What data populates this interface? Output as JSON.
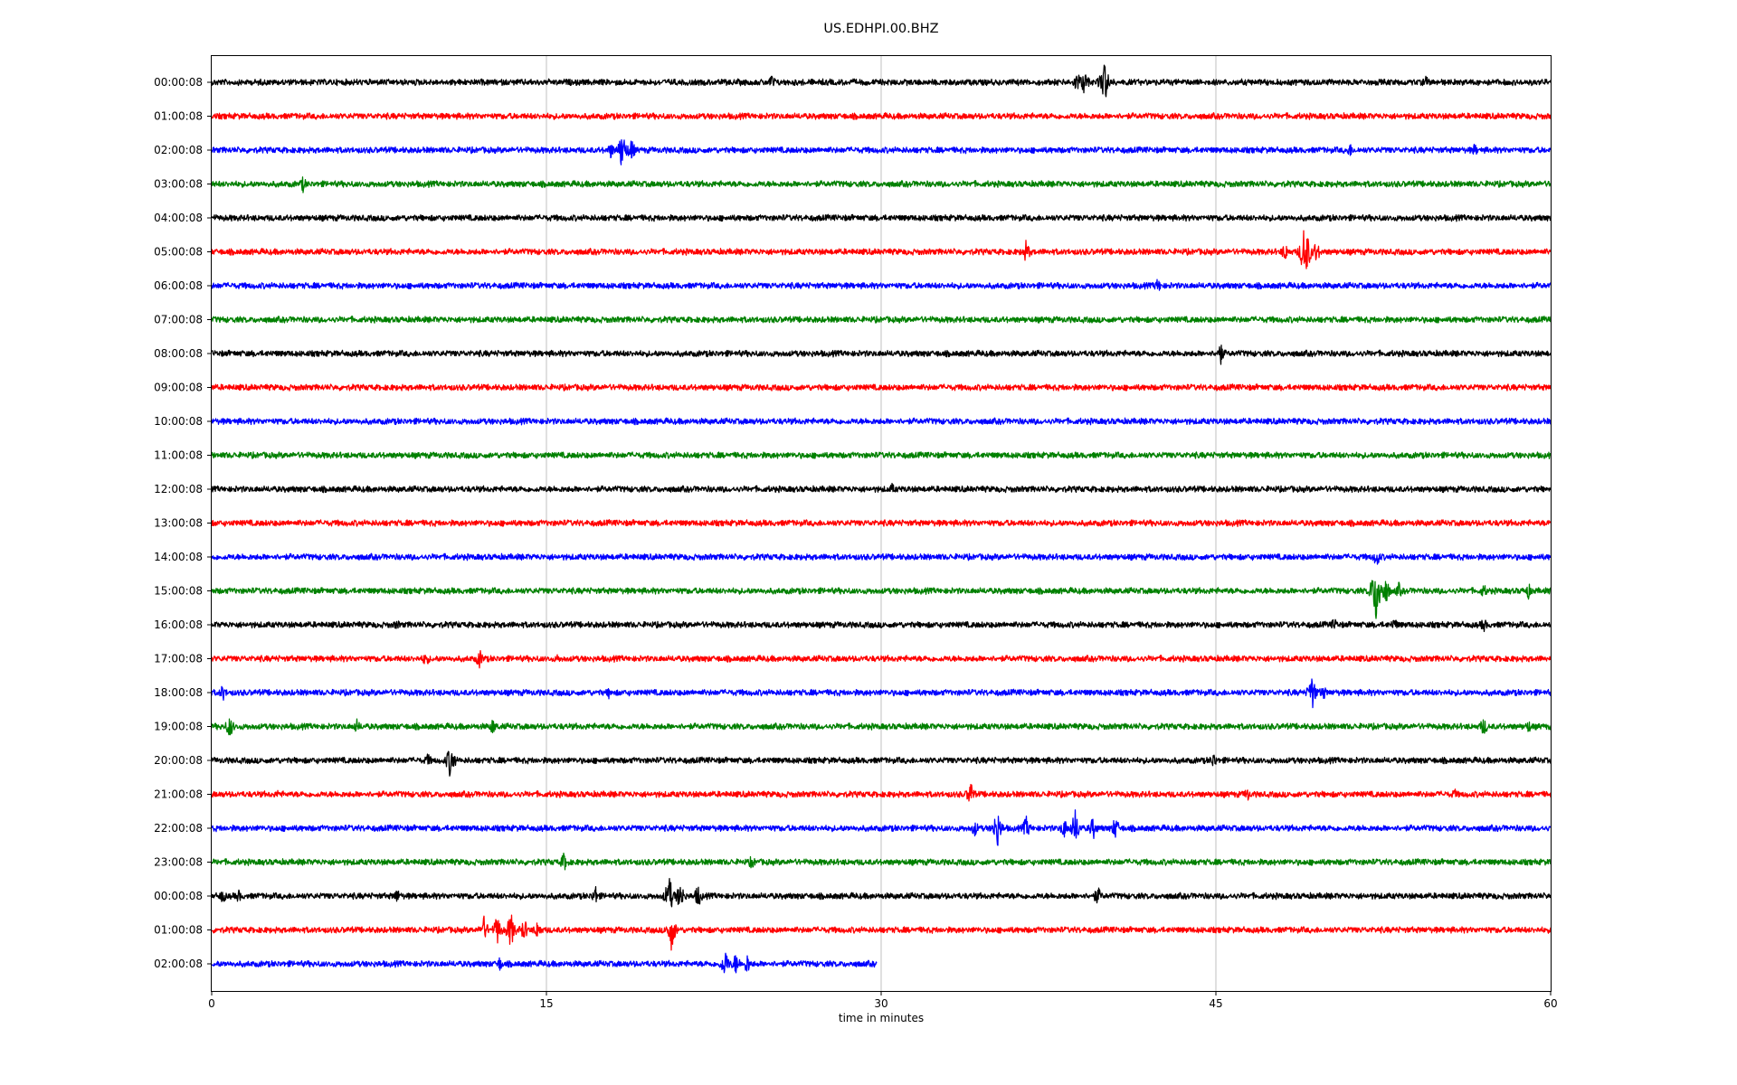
{
  "chart_data": {
    "type": "line",
    "title": "US.EDHPI.00.BHZ",
    "xlabel": "time in minutes",
    "ylabel": "",
    "xlim": [
      0,
      60
    ],
    "x_ticks": [
      0,
      15,
      30,
      45,
      60
    ],
    "x_tick_labels": [
      "0",
      "15",
      "30",
      "45",
      "60"
    ],
    "grid": "vertical lines at major x ticks",
    "line_colors": [
      "#000000",
      "#ff0000",
      "#0000ff",
      "#008000"
    ],
    "series": [
      {
        "label": "00:00:08",
        "color": "#000000",
        "end_minute": 60,
        "events": [
          [
            25.1,
            10
          ],
          [
            38.8,
            14
          ],
          [
            39.1,
            16
          ],
          [
            40.0,
            28
          ],
          [
            54.4,
            9
          ]
        ]
      },
      {
        "label": "01:00:08",
        "color": "#ff0000",
        "end_minute": 60,
        "events": []
      },
      {
        "label": "02:00:08",
        "color": "#0000ff",
        "end_minute": 60,
        "events": [
          [
            17.9,
            10
          ],
          [
            18.4,
            24
          ],
          [
            18.8,
            14
          ],
          [
            51.0,
            9
          ],
          [
            56.6,
            8
          ]
        ]
      },
      {
        "label": "03:00:08",
        "color": "#008000",
        "end_minute": 60,
        "events": [
          [
            4.1,
            10
          ]
        ]
      },
      {
        "label": "04:00:08",
        "color": "#000000",
        "end_minute": 60,
        "events": []
      },
      {
        "label": "05:00:08",
        "color": "#ff0000",
        "end_minute": 60,
        "events": [
          [
            36.5,
            14
          ],
          [
            48.1,
            12
          ],
          [
            49.0,
            40
          ],
          [
            49.5,
            14
          ]
        ]
      },
      {
        "label": "06:00:08",
        "color": "#0000ff",
        "end_minute": 60,
        "events": [
          [
            42.4,
            9
          ]
        ]
      },
      {
        "label": "07:00:08",
        "color": "#008000",
        "end_minute": 60,
        "events": []
      },
      {
        "label": "08:00:08",
        "color": "#000000",
        "end_minute": 60,
        "events": [
          [
            45.2,
            14
          ]
        ]
      },
      {
        "label": "09:00:08",
        "color": "#ff0000",
        "end_minute": 60,
        "events": []
      },
      {
        "label": "10:00:08",
        "color": "#0000ff",
        "end_minute": 60,
        "events": []
      },
      {
        "label": "11:00:08",
        "color": "#008000",
        "end_minute": 60,
        "events": []
      },
      {
        "label": "12:00:08",
        "color": "#000000",
        "end_minute": 60,
        "events": [
          [
            30.5,
            7
          ]
        ]
      },
      {
        "label": "13:00:08",
        "color": "#ff0000",
        "end_minute": 60,
        "events": []
      },
      {
        "label": "14:00:08",
        "color": "#0000ff",
        "end_minute": 60,
        "events": [
          [
            52.2,
            12
          ]
        ]
      },
      {
        "label": "15:00:08",
        "color": "#008000",
        "end_minute": 60,
        "events": [
          [
            52.0,
            14
          ],
          [
            52.2,
            42
          ],
          [
            52.6,
            18
          ],
          [
            53.2,
            10
          ],
          [
            57.0,
            9
          ],
          [
            59.0,
            10
          ]
        ]
      },
      {
        "label": "16:00:08",
        "color": "#000000",
        "end_minute": 60,
        "events": [
          [
            8.3,
            7
          ],
          [
            50.3,
            9
          ],
          [
            53.0,
            9
          ],
          [
            57.0,
            9
          ]
        ]
      },
      {
        "label": "17:00:08",
        "color": "#ff0000",
        "end_minute": 60,
        "events": [
          [
            9.6,
            10
          ],
          [
            12.0,
            12
          ],
          [
            15.5,
            6
          ]
        ]
      },
      {
        "label": "18:00:08",
        "color": "#0000ff",
        "end_minute": 60,
        "events": [
          [
            0.5,
            10
          ],
          [
            17.8,
            7
          ],
          [
            49.3,
            22
          ],
          [
            49.8,
            10
          ]
        ]
      },
      {
        "label": "19:00:08",
        "color": "#008000",
        "end_minute": 60,
        "events": [
          [
            0.8,
            14
          ],
          [
            6.5,
            9
          ],
          [
            12.6,
            10
          ],
          [
            57.0,
            12
          ],
          [
            59.0,
            8
          ]
        ]
      },
      {
        "label": "20:00:08",
        "color": "#000000",
        "end_minute": 60,
        "events": [
          [
            9.7,
            9
          ],
          [
            10.7,
            22
          ],
          [
            44.9,
            10
          ]
        ]
      },
      {
        "label": "21:00:08",
        "color": "#ff0000",
        "end_minute": 60,
        "events": [
          [
            3.0,
            6
          ],
          [
            34.0,
            16
          ],
          [
            46.4,
            9
          ],
          [
            55.7,
            7
          ]
        ]
      },
      {
        "label": "22:00:08",
        "color": "#0000ff",
        "end_minute": 60,
        "events": [
          [
            34.2,
            10
          ],
          [
            35.2,
            24
          ],
          [
            36.5,
            14
          ],
          [
            38.2,
            12
          ],
          [
            38.7,
            22
          ],
          [
            39.5,
            14
          ],
          [
            40.5,
            14
          ]
        ]
      },
      {
        "label": "23:00:08",
        "color": "#008000",
        "end_minute": 60,
        "events": [
          [
            15.8,
            12
          ],
          [
            24.2,
            9
          ]
        ]
      },
      {
        "label": "00:00:08",
        "color": "#000000",
        "end_minute": 60,
        "events": [
          [
            0.5,
            9
          ],
          [
            1.2,
            8
          ],
          [
            8.3,
            9
          ],
          [
            17.2,
            12
          ],
          [
            20.5,
            24
          ],
          [
            21.0,
            18
          ],
          [
            21.8,
            14
          ],
          [
            39.7,
            12
          ]
        ]
      },
      {
        "label": "01:00:08",
        "color": "#ff0000",
        "end_minute": 60,
        "events": [
          [
            12.2,
            16
          ],
          [
            12.8,
            18
          ],
          [
            13.4,
            22
          ],
          [
            14.0,
            14
          ],
          [
            14.6,
            12
          ],
          [
            20.6,
            24
          ]
        ]
      },
      {
        "label": "02:00:08",
        "color": "#0000ff",
        "end_minute": 29.8,
        "events": [
          [
            12.9,
            9
          ],
          [
            23.0,
            18
          ],
          [
            23.5,
            14
          ],
          [
            24.0,
            12
          ]
        ]
      }
    ]
  }
}
